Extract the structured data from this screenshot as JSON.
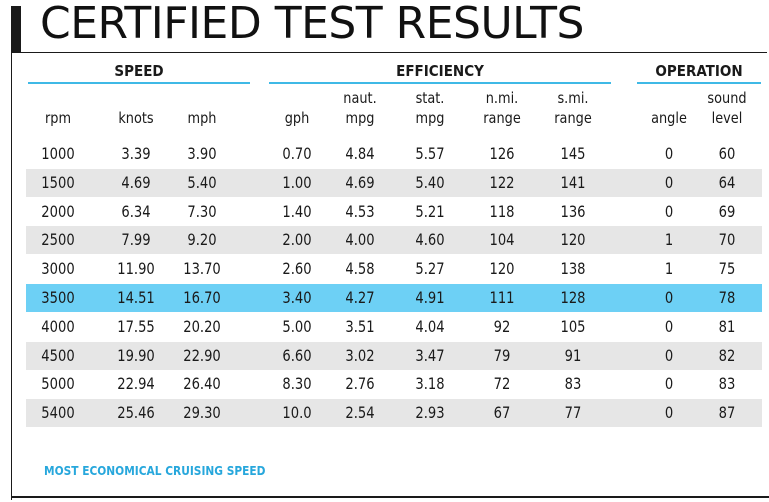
{
  "title": "CERTIFIED TEST RESULTS",
  "groups": {
    "speed": "SPEED",
    "efficiency": "EFFICIENCY",
    "operation": "OPERATION"
  },
  "columns": [
    {
      "line1": "",
      "line2": "rpm"
    },
    {
      "line1": "",
      "line2": "knots"
    },
    {
      "line1": "",
      "line2": "mph"
    },
    {
      "line1": "",
      "line2": "gph"
    },
    {
      "line1": "naut.",
      "line2": "mpg"
    },
    {
      "line1": "stat.",
      "line2": "mpg"
    },
    {
      "line1": "n.mi.",
      "line2": "range"
    },
    {
      "line1": "s.mi.",
      "line2": "range"
    },
    {
      "line1": "",
      "line2": "angle"
    },
    {
      "line1": "sound",
      "line2": "level"
    }
  ],
  "rows": [
    [
      "1000",
      "3.39",
      "3.90",
      "0.70",
      "4.84",
      "5.57",
      "126",
      "145",
      "0",
      "60"
    ],
    [
      "1500",
      "4.69",
      "5.40",
      "1.00",
      "4.69",
      "5.40",
      "122",
      "141",
      "0",
      "64"
    ],
    [
      "2000",
      "6.34",
      "7.30",
      "1.40",
      "4.53",
      "5.21",
      "118",
      "136",
      "0",
      "69"
    ],
    [
      "2500",
      "7.99",
      "9.20",
      "2.00",
      "4.00",
      "4.60",
      "104",
      "120",
      "1",
      "70"
    ],
    [
      "3000",
      "11.90",
      "13.70",
      "2.60",
      "4.58",
      "5.27",
      "120",
      "138",
      "1",
      "75"
    ],
    [
      "3500",
      "14.51",
      "16.70",
      "3.40",
      "4.27",
      "4.91",
      "111",
      "128",
      "0",
      "78"
    ],
    [
      "4000",
      "17.55",
      "20.20",
      "5.00",
      "3.51",
      "4.04",
      "92",
      "105",
      "0",
      "81"
    ],
    [
      "4500",
      "19.90",
      "22.90",
      "6.60",
      "3.02",
      "3.47",
      "79",
      "91",
      "0",
      "82"
    ],
    [
      "5000",
      "22.94",
      "26.40",
      "8.30",
      "2.76",
      "3.18",
      "72",
      "83",
      "0",
      "83"
    ],
    [
      "5400",
      "25.46",
      "29.30",
      "10.0",
      "2.54",
      "2.93",
      "67",
      "77",
      "0",
      "87"
    ]
  ],
  "highlight_row": 5,
  "highlight_color": "#6dd0f5",
  "accent_color": "#3fb9e6",
  "note": "MOST ECONOMICAL CRUISING SPEED"
}
